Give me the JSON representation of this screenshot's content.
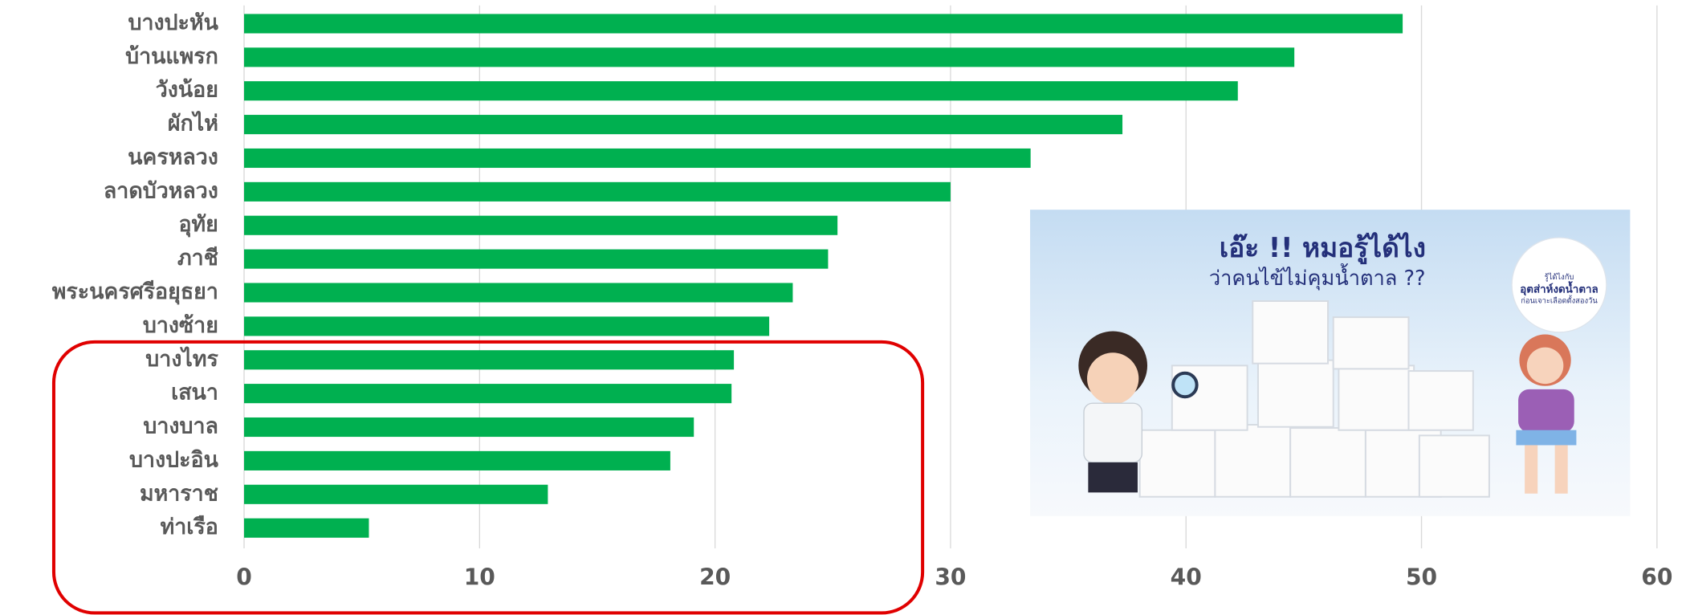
{
  "chart_data": {
    "type": "barh",
    "categories": [
      "บางปะหัน",
      "บ้านแพรก",
      "วังน้อย",
      "ผักไห่",
      "นครหลวง",
      "ลาดบัวหลวง",
      "อุทัย",
      "ภาชี",
      "พระนครศรีอยุธยา",
      "บางซ้าย",
      "บางไทร",
      "เสนา",
      "บางบาล",
      "บางปะอิน",
      "มหาราช",
      "ท่าเรือ"
    ],
    "values": [
      49.2,
      44.6,
      42.2,
      37.3,
      33.4,
      30.0,
      25.2,
      24.8,
      23.3,
      22.3,
      20.8,
      20.7,
      19.1,
      18.1,
      12.9,
      5.3
    ],
    "color": "#00b050",
    "xlim": [
      0,
      60
    ],
    "xticks": [
      0,
      10,
      20,
      30,
      40,
      50,
      60
    ],
    "grid": true
  },
  "inset": {
    "title": "เอ๊ะ !! หมอรู้ได้ไง",
    "subtitle": "ว่าคนไข้ไม่คุมน้ำตาล ??",
    "bubble": [
      "รู้ได้ไงกับ",
      "อุตส่าห์งดน้ำตาล",
      "ก่อนเจาะเลือดตั้งสองวัน"
    ]
  }
}
